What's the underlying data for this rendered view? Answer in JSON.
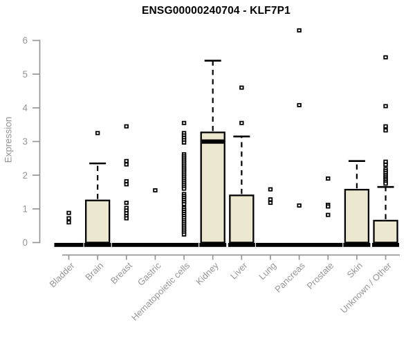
{
  "chart_data": {
    "type": "boxplot",
    "title": "ENSG00000240704 - KLF7P1",
    "ylabel": "Expression",
    "xlabel": "",
    "yticks": [
      0,
      1,
      2,
      3,
      4,
      5,
      6
    ],
    "ylim": [
      0,
      6.45
    ],
    "grid": false,
    "legend": "none",
    "categories": [
      "Bladder",
      "Brain",
      "Breast",
      "Gastric",
      "Hematopoietic cells",
      "Kidney",
      "Liver",
      "Lung",
      "Pancreas",
      "Prostate",
      "Skin",
      "Unknown / Other"
    ],
    "boxes": [
      {
        "category": "Bladder",
        "q1": 0,
        "median": 0,
        "q3": 0,
        "whisker_low": 0,
        "whisker_high": 0,
        "outliers": [
          0.88,
          0.72,
          0.6
        ]
      },
      {
        "category": "Brain",
        "q1": 0,
        "median": 0,
        "q3": 1.25,
        "whisker_low": 0,
        "whisker_high": 2.35,
        "outliers": [
          3.25
        ]
      },
      {
        "category": "Breast",
        "q1": 0,
        "median": 0,
        "q3": 0,
        "whisker_low": 0,
        "whisker_high": 0,
        "outliers": [
          3.45,
          2.42,
          2.32,
          1.82,
          1.73,
          1.18,
          1.03,
          0.95,
          0.87,
          0.79,
          0.72
        ]
      },
      {
        "category": "Gastric",
        "q1": 0,
        "median": 0,
        "q3": 0,
        "whisker_low": 0,
        "whisker_high": 0,
        "outliers": [
          1.55
        ]
      },
      {
        "category": "Hematopoietic cells",
        "q1": 0,
        "median": 0,
        "q3": 0,
        "whisker_low": 0,
        "whisker_high": 0,
        "outliers": [
          3.55,
          3.25,
          3.18,
          3.11,
          3.04,
          2.97,
          2.62,
          2.56,
          2.5,
          2.44,
          2.38,
          2.32,
          2.26,
          2.2,
          2.14,
          2.08,
          2.02,
          1.96,
          1.9,
          1.84,
          1.78,
          1.72,
          1.66,
          1.6,
          1.44,
          1.38,
          1.32,
          1.26,
          1.2,
          1.14,
          1.03,
          0.97,
          0.91,
          0.85,
          0.79,
          0.73,
          0.66,
          0.6,
          0.54,
          0.48,
          0.42,
          0.36,
          0.3,
          0.24
        ]
      },
      {
        "category": "Kidney",
        "q1": 0,
        "median": 3.0,
        "q3": 3.27,
        "whisker_low": 0,
        "whisker_high": 5.4,
        "outliers": []
      },
      {
        "category": "Liver",
        "q1": 0,
        "median": 0,
        "q3": 1.4,
        "whisker_low": 0,
        "whisker_high": 3.15,
        "outliers": [
          4.6,
          3.55
        ]
      },
      {
        "category": "Lung",
        "q1": 0,
        "median": 0,
        "q3": 0,
        "whisker_low": 0,
        "whisker_high": 0,
        "outliers": [
          1.58,
          1.28,
          1.18
        ]
      },
      {
        "category": "Pancreas",
        "q1": 0,
        "median": 0,
        "q3": 0,
        "whisker_low": 0,
        "whisker_high": 0,
        "outliers": [
          6.3,
          4.08,
          1.1
        ]
      },
      {
        "category": "Prostate",
        "q1": 0,
        "median": 0,
        "q3": 0,
        "whisker_low": 0,
        "whisker_high": 0,
        "outliers": [
          1.9,
          1.12,
          1.07,
          0.82
        ]
      },
      {
        "category": "Skin",
        "q1": 0,
        "median": 0,
        "q3": 1.57,
        "whisker_low": 0,
        "whisker_high": 2.42,
        "outliers": []
      },
      {
        "category": "Unknown / Other",
        "q1": 0,
        "median": 0,
        "q3": 0.65,
        "whisker_low": 0,
        "whisker_high": 1.65,
        "outliers": [
          5.5,
          4.05,
          3.45,
          3.33,
          2.4,
          2.31,
          2.18,
          2.12,
          2.06,
          2.0,
          1.95,
          1.9,
          1.85,
          1.8,
          1.75
        ]
      }
    ],
    "colors": {
      "box_fill": "#ece8cf",
      "box_stroke": "#000000",
      "median": "#000000",
      "whisker": "#000000",
      "outlier_fill": "#ffffff",
      "axis": "#969696",
      "title": "#000000",
      "background": "#ffffff"
    }
  }
}
